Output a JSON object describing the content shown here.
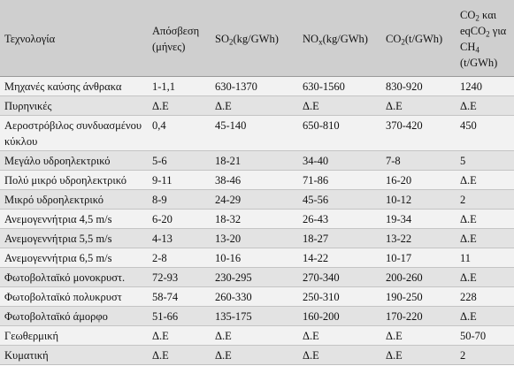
{
  "table": {
    "headers": {
      "technology": "Τεχνολογία",
      "depreciation_l1": "Απόσβεση",
      "depreciation_l2": "(μήνες)",
      "so2_a": "SO",
      "so2_sub": "2",
      "so2_b": "(kg/GWh)",
      "nox_a": "NO",
      "nox_sub": "x",
      "nox_b": "(kg/GWh)",
      "co2_a": "CO",
      "co2_sub": "2",
      "co2_b": "(t/GWh)",
      "co2e_a": "CO",
      "co2e_sub1": "2",
      "co2e_b": " και eqCO",
      "co2e_sub2": "2",
      "co2e_c": " για CH",
      "co2e_sub3": "4",
      "co2e_d": " (t/GWh)"
    },
    "rows": [
      {
        "tech": "Μηχανές καύσης άνθρακα",
        "dep": "1-1,1",
        "so2": "630-1370",
        "nox": "630-1560",
        "co2": "830-920",
        "co2e": "1240"
      },
      {
        "tech": "Πυρηνικές",
        "dep": "Δ.Ε",
        "so2": "Δ.Ε",
        "nox": "Δ.Ε",
        "co2": "Δ.Ε",
        "co2e": "Δ.Ε"
      },
      {
        "tech": "Αεροστρόβιλος συνδυασμένου κύκλου",
        "dep": "0,4",
        "so2": "45-140",
        "nox": "650-810",
        "co2": "370-420",
        "co2e": "450"
      },
      {
        "tech": "Μεγάλο υδροηλεκτρικό",
        "dep": "5-6",
        "so2": "18-21",
        "nox": "34-40",
        "co2": "7-8",
        "co2e": "5"
      },
      {
        "tech": "Πολύ μικρό υδροηλεκτρικό",
        "dep": "9-11",
        "so2": "38-46",
        "nox": "71-86",
        "co2": "16-20",
        "co2e": "Δ.Ε"
      },
      {
        "tech": "Μικρό υδροηλεκτρικό",
        "dep": "8-9",
        "so2": "24-29",
        "nox": "45-56",
        "co2": "10-12",
        "co2e": "2"
      },
      {
        "tech": "Ανεμογεννήτρια 4,5 m/s",
        "dep": "6-20",
        "so2": "18-32",
        "nox": "26-43",
        "co2": "19-34",
        "co2e": "Δ.Ε"
      },
      {
        "tech": "Ανεμογεννήτρια 5,5 m/s",
        "dep": "4-13",
        "so2": "13-20",
        "nox": "18-27",
        "co2": "13-22",
        "co2e": "Δ.Ε"
      },
      {
        "tech": "Ανεμογεννήτρια 6,5 m/s",
        "dep": "2-8",
        "so2": "10-16",
        "nox": "14-22",
        "co2": "10-17",
        "co2e": "11"
      },
      {
        "tech": "Φωτοβολταϊκό μονοκρυστ.",
        "dep": "72-93",
        "so2": "230-295",
        "nox": "270-340",
        "co2": "200-260",
        "co2e": "Δ.Ε"
      },
      {
        "tech": "Φωτοβολταϊκό πολυκρυστ",
        "dep": "58-74",
        "so2": "260-330",
        "nox": "250-310",
        "co2": "190-250",
        "co2e": "228"
      },
      {
        "tech": "Φωτοβολταϊκό άμορφο",
        "dep": "51-66",
        "so2": "135-175",
        "nox": "160-200",
        "co2": "170-220",
        "co2e": "Δ.Ε"
      },
      {
        "tech": "Γεωθερμική",
        "dep": "Δ.Ε",
        "so2": "Δ.Ε",
        "nox": "Δ.Ε",
        "co2": "Δ.Ε",
        "co2e": "50-70"
      },
      {
        "tech": "Κυματική",
        "dep": "Δ.Ε",
        "so2": "Δ.Ε",
        "nox": "Δ.Ε",
        "co2": "Δ.Ε",
        "co2e": "2"
      }
    ]
  }
}
